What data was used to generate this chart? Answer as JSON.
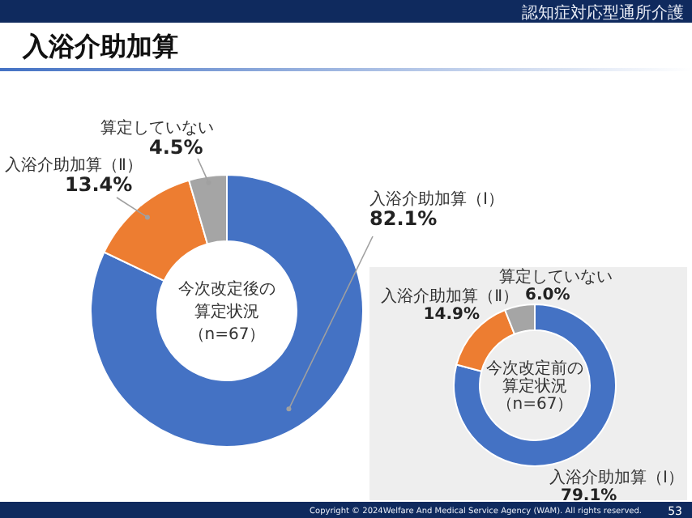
{
  "chart_data": [
    {
      "type": "donut",
      "title": "入浴介助加算",
      "categories": [
        "入浴介助加算（Ⅰ）",
        "入浴介助加算（Ⅱ）",
        "算定していない"
      ],
      "values": [
        82.1,
        13.4,
        4.5
      ],
      "colors": [
        "#4472c4",
        "#ed7d31",
        "#a5a5a5"
      ],
      "value_labels": [
        "82.1%",
        "13.4%",
        "4.5%"
      ],
      "annotations": [
        "今次改定後の",
        "算定状況",
        "（n=67）",
        "認知症対応型通所介護",
        "Copyright © 2024Welfare And Medical Service Agency (WAM). All rights reserved.",
        "53"
      ]
    },
    {
      "type": "donut",
      "categories": [
        "入浴介助加算（Ⅰ）",
        "入浴介助加算（Ⅱ）",
        "算定していない"
      ],
      "values": [
        79.1,
        14.9,
        6.0
      ],
      "colors": [
        "#4472c4",
        "#ed7d31",
        "#a5a5a5"
      ],
      "value_labels": [
        "79.1%",
        "14.9%",
        "6.0%"
      ],
      "annotations": [
        "今次改定前の",
        "算定状況",
        "（n=67）"
      ]
    }
  ]
}
